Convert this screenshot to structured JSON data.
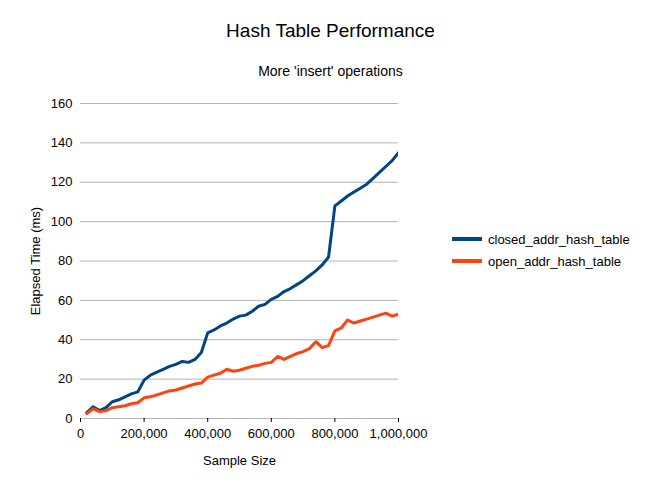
{
  "chart_data": {
    "type": "line",
    "title": "Hash Table Performance",
    "subtitle": "More 'insert' operations",
    "x_label": "Sample Size",
    "y_label": "Elapsed Time (ms)",
    "x": [
      20000,
      40000,
      60000,
      80000,
      100000,
      120000,
      140000,
      160000,
      180000,
      200000,
      220000,
      240000,
      260000,
      280000,
      300000,
      320000,
      340000,
      360000,
      380000,
      400000,
      420000,
      440000,
      460000,
      480000,
      500000,
      520000,
      540000,
      560000,
      580000,
      600000,
      620000,
      640000,
      660000,
      680000,
      700000,
      720000,
      740000,
      760000,
      780000,
      800000,
      820000,
      840000,
      860000,
      880000,
      900000,
      920000,
      940000,
      960000,
      980000,
      1000000
    ],
    "series": [
      {
        "name": "closed_addr_hash_table",
        "color": "#004586",
        "values": [
          3,
          6,
          4,
          5.5,
          8.5,
          9.5,
          11,
          12.5,
          13.5,
          19.5,
          22,
          23.5,
          25,
          26.5,
          27.5,
          29,
          28.5,
          30,
          33.5,
          43.5,
          45,
          47,
          48.5,
          50.5,
          52,
          52.5,
          54.5,
          57,
          58,
          60.5,
          62,
          64.5,
          66,
          68,
          70,
          72.5,
          75,
          78,
          82,
          108,
          110.5,
          113,
          115,
          117,
          119,
          122,
          125,
          128,
          131,
          135
        ]
      },
      {
        "name": "open_addr_hash_table",
        "color": "#ff420e",
        "values": [
          2.5,
          5,
          3.5,
          4,
          5.5,
          6,
          6.5,
          7.5,
          8,
          10.5,
          11,
          12,
          13,
          14,
          14.5,
          15.5,
          16.5,
          17.5,
          18,
          21,
          22,
          23,
          25,
          24,
          24.5,
          25.5,
          26.5,
          27,
          28,
          28.5,
          31.5,
          30,
          31.5,
          33,
          34,
          35.5,
          39,
          36,
          37,
          44.5,
          46,
          50,
          48.5,
          49.5,
          50.5,
          51.5,
          52.5,
          53.5,
          52,
          53
        ]
      }
    ],
    "xlim": [
      0,
      1000000
    ],
    "xticks": [
      0,
      200000,
      400000,
      600000,
      800000,
      1000000
    ],
    "ylim": [
      0,
      160
    ],
    "yticks": [
      0,
      20,
      40,
      60,
      80,
      100,
      120,
      140,
      160
    ],
    "grid": true,
    "legend": "right"
  }
}
